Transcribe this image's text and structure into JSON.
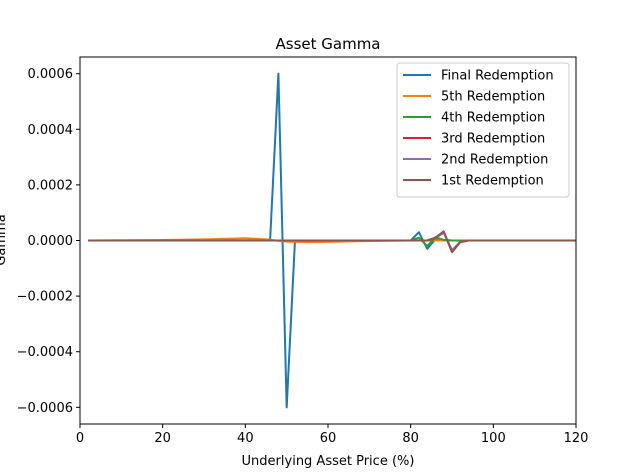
{
  "chart_data": {
    "type": "line",
    "title": "Asset Gamma",
    "xlabel": "Underlying Asset Price (%)",
    "ylabel": "Gamma",
    "xlim": [
      0,
      120
    ],
    "ylim": [
      -0.00066,
      0.00066
    ],
    "xticks": [
      0,
      20,
      40,
      60,
      80,
      100,
      120
    ],
    "yticks": [
      -0.0006,
      -0.0004,
      -0.0002,
      0.0,
      0.0002,
      0.0004,
      0.0006
    ],
    "xtick_labels": [
      "0",
      "20",
      "40",
      "60",
      "80",
      "100",
      "120"
    ],
    "ytick_labels": [
      "−0.0006",
      "−0.0004",
      "−0.0002",
      "0.0000",
      "0.0002",
      "0.0004",
      "0.0006"
    ],
    "grid": false,
    "legend_position": "top-right",
    "series": [
      {
        "name": "Final Redemption",
        "color": "#1f77b4",
        "x": [
          2,
          20,
          40,
          46,
          48,
          50,
          52,
          60,
          80,
          82,
          84,
          86,
          88,
          90,
          92,
          100,
          120
        ],
        "y": [
          0,
          0,
          0,
          3e-06,
          0.0006,
          -0.0006,
          -3e-06,
          0,
          0,
          3e-05,
          -3e-05,
          5e-06,
          2e-06,
          0,
          0,
          0,
          0
        ]
      },
      {
        "name": "5th Redemption",
        "color": "#ff7f0e",
        "x": [
          2,
          20,
          30,
          40,
          45,
          50,
          55,
          60,
          70,
          80,
          84,
          86,
          88,
          90,
          92,
          100,
          120
        ],
        "y": [
          0,
          2e-06,
          4e-06,
          8e-06,
          4e-06,
          -4e-06,
          -6e-06,
          -5e-06,
          -2e-06,
          0,
          0,
          0,
          0,
          0,
          0,
          0,
          0
        ]
      },
      {
        "name": "4th Redemption",
        "color": "#2ca02c",
        "x": [
          2,
          20,
          40,
          60,
          80,
          82,
          84,
          86,
          88,
          90,
          92,
          100,
          120
        ],
        "y": [
          0,
          0,
          0,
          0,
          0,
          1e-05,
          -2e-05,
          1.2e-05,
          2e-06,
          0,
          0,
          0,
          0
        ]
      },
      {
        "name": "3rd Redemption",
        "color": "#d62728",
        "x": [
          2,
          20,
          40,
          60,
          80,
          84,
          86,
          88,
          90,
          92,
          94,
          100,
          120
        ],
        "y": [
          0,
          0,
          0,
          0,
          0,
          0,
          1e-05,
          3e-05,
          -4e-05,
          -5e-06,
          0,
          0,
          0
        ]
      },
      {
        "name": "2nd Redemption",
        "color": "#9467bd",
        "x": [
          2,
          20,
          40,
          60,
          80,
          84,
          86,
          88,
          90,
          92,
          94,
          100,
          120
        ],
        "y": [
          0,
          0,
          0,
          0,
          0,
          0,
          1e-05,
          2.8e-05,
          -3.5e-05,
          -5e-06,
          0,
          0,
          0
        ]
      },
      {
        "name": "1st Redemption",
        "color": "#8c564b",
        "x": [
          2,
          20,
          40,
          60,
          80,
          84,
          86,
          88,
          90,
          92,
          94,
          100,
          120
        ],
        "y": [
          0,
          0,
          0,
          0,
          0,
          0,
          1e-05,
          3.3e-05,
          -4.2e-05,
          -6e-06,
          0,
          0,
          0
        ]
      }
    ]
  }
}
